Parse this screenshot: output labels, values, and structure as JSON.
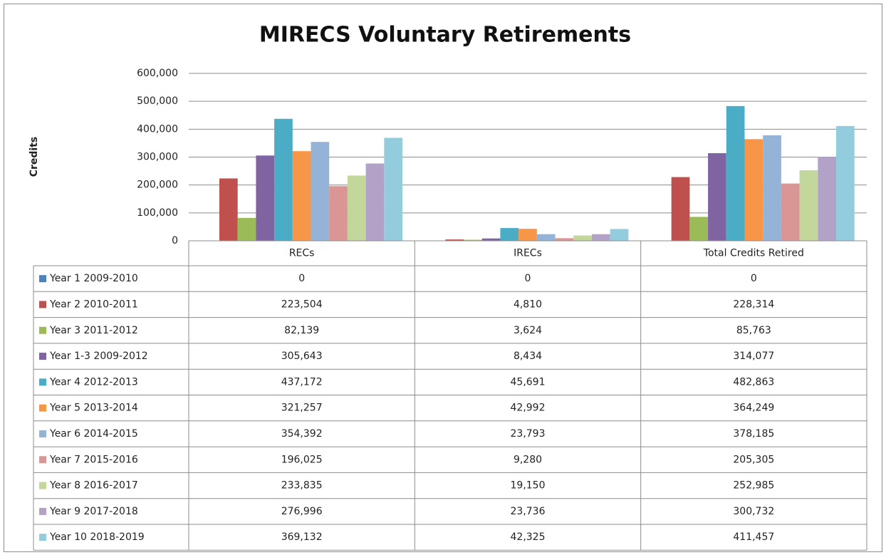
{
  "chart_data": {
    "type": "bar",
    "title": "MIRECS Voluntary Retirements",
    "y_label": "Credits",
    "categories": [
      "RECs",
      "IRECs",
      "Total Credits Retired"
    ],
    "ylim": [
      0,
      600000
    ],
    "yticks": [
      0,
      {
        "value": 100000,
        "label": "100,000"
      },
      {
        "value": 200000,
        "label": "200,000"
      },
      {
        "value": 300000,
        "label": "300,000"
      },
      {
        "value": 400000,
        "label": "400,000"
      },
      {
        "value": 500000,
        "label": "500,000"
      },
      {
        "value": 600000,
        "label": "600,000"
      }
    ],
    "grid": true,
    "series": [
      {
        "name": "Year 1 2009-2010",
        "color": "#4f81bd",
        "values": [
          0,
          0,
          0
        ]
      },
      {
        "name": "Year 2 2010-2011",
        "color": "#c0504d",
        "values": [
          223504,
          4810,
          228314
        ],
        "value_labels": [
          "223,504",
          "4,810",
          "228,314"
        ]
      },
      {
        "name": "Year 3 2011-2012",
        "color": "#9bbb59",
        "values": [
          82139,
          3624,
          85763
        ],
        "value_labels": [
          "82,139",
          "3,624",
          "85,763"
        ]
      },
      {
        "name": "Year 1-3 2009-2012",
        "color": "#8064a2",
        "values": [
          305643,
          8434,
          314077
        ],
        "value_labels": [
          "305,643",
          "8,434",
          "314,077"
        ]
      },
      {
        "name": "Year 4 2012-2013",
        "color": "#4bacc6",
        "values": [
          437172,
          45691,
          482863
        ],
        "value_labels": [
          "437,172",
          "45,691",
          "482,863"
        ]
      },
      {
        "name": "Year 5 2013-2014",
        "color": "#f79646",
        "values": [
          321257,
          42992,
          364249
        ],
        "value_labels": [
          "321,257",
          "42,992",
          "364,249"
        ]
      },
      {
        "name": "Year 6 2014-2015",
        "color": "#95b3d7",
        "values": [
          354392,
          23793,
          378185
        ],
        "value_labels": [
          "354,392",
          "23,793",
          "378,185"
        ]
      },
      {
        "name": "Year 7 2015-2016",
        "color": "#d99694",
        "values": [
          196025,
          9280,
          205305
        ],
        "value_labels": [
          "196,025",
          "9,280",
          "205,305"
        ]
      },
      {
        "name": "Year 8 2016-2017",
        "color": "#c3d69b",
        "values": [
          233835,
          19150,
          252985
        ],
        "value_labels": [
          "233,835",
          "19,150",
          "252,985"
        ]
      },
      {
        "name": "Year 9 2017-2018",
        "color": "#b3a2c7",
        "values": [
          276996,
          23736,
          300732
        ],
        "value_labels": [
          "276,996",
          "23,736",
          "300,732"
        ]
      },
      {
        "name": "Year 10 2018-2019",
        "color": "#93cddd",
        "values": [
          369132,
          42325,
          411457
        ],
        "value_labels": [
          "369,132",
          "42,325",
          "411,457"
        ]
      }
    ]
  }
}
